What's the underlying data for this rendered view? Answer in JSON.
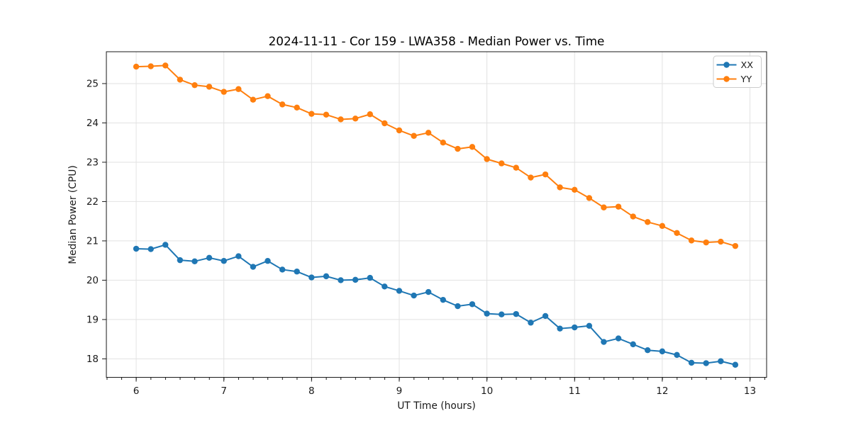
{
  "chart_data": {
    "type": "line",
    "title": "2024-11-11 - Cor 159 - LWA358 - Median Power vs. Time",
    "xlabel": "UT Time (hours)",
    "ylabel": "Median Power (CPU)",
    "grid": true,
    "legend_position": "upper right",
    "xlim": [
      5.66,
      13.19
    ],
    "ylim": [
      17.53,
      25.81
    ],
    "xticks": [
      6,
      7,
      8,
      9,
      10,
      11,
      12,
      13
    ],
    "yticks": [
      18,
      19,
      20,
      21,
      22,
      23,
      24,
      25
    ],
    "x_minor_tick_step": 0.1667,
    "x": [
      6.0,
      6.167,
      6.333,
      6.5,
      6.667,
      6.833,
      7.0,
      7.167,
      7.333,
      7.5,
      7.667,
      7.833,
      8.0,
      8.167,
      8.333,
      8.5,
      8.667,
      8.833,
      9.0,
      9.167,
      9.333,
      9.5,
      9.667,
      9.833,
      10.0,
      10.167,
      10.333,
      10.5,
      10.667,
      10.833,
      11.0,
      11.167,
      11.333,
      11.5,
      11.667,
      11.833,
      12.0,
      12.167,
      12.333,
      12.5,
      12.667,
      12.833
    ],
    "series": [
      {
        "name": "XX",
        "color": "#1f77b4",
        "values": [
          20.8,
          20.79,
          20.9,
          20.51,
          20.48,
          20.57,
          20.49,
          20.61,
          20.34,
          20.49,
          20.27,
          20.22,
          20.07,
          20.1,
          20.0,
          20.01,
          20.06,
          19.84,
          19.73,
          19.61,
          19.7,
          19.5,
          19.34,
          19.39,
          19.15,
          19.13,
          19.14,
          18.92,
          19.09,
          18.77,
          18.8,
          18.84,
          18.43,
          18.52,
          18.37,
          18.22,
          18.19,
          18.1,
          17.9,
          17.89,
          17.94,
          17.85
        ]
      },
      {
        "name": "YY",
        "color": "#ff7f0e",
        "values": [
          25.43,
          25.44,
          25.46,
          25.1,
          24.96,
          24.92,
          24.79,
          24.86,
          24.59,
          24.68,
          24.47,
          24.39,
          24.23,
          24.21,
          24.09,
          24.11,
          24.22,
          23.99,
          23.81,
          23.67,
          23.75,
          23.5,
          23.34,
          23.39,
          23.08,
          22.97,
          22.86,
          22.61,
          22.69,
          22.36,
          22.3,
          22.09,
          21.85,
          21.87,
          21.62,
          21.48,
          21.38,
          21.2,
          21.01,
          20.96,
          20.98,
          20.87
        ]
      }
    ],
    "colors": {
      "grid": "#e2e2e2",
      "spine": "#1a1a1a",
      "background": "#ffffff"
    }
  }
}
